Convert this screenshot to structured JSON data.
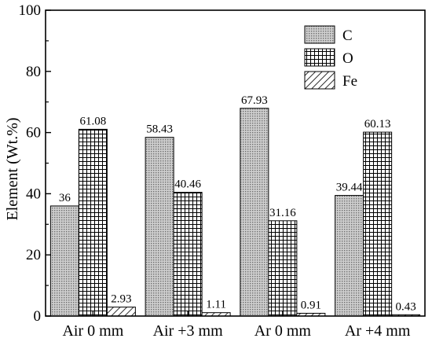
{
  "chart_data": {
    "type": "bar",
    "categories": [
      "Air 0 mm",
      "Air +3 mm",
      "Ar 0 mm",
      "Ar +4 mm"
    ],
    "series": [
      {
        "name": "C",
        "values": [
          36,
          58.43,
          67.93,
          39.44
        ],
        "pattern": "dots"
      },
      {
        "name": "O",
        "values": [
          61.08,
          40.46,
          31.16,
          60.13
        ],
        "pattern": "grid"
      },
      {
        "name": "Fe",
        "values": [
          2.93,
          1.11,
          0.91,
          0.43
        ],
        "pattern": "hatch"
      }
    ],
    "data_labels": [
      [
        "36",
        "58.43",
        "67.93",
        "39.44"
      ],
      [
        "61.08",
        "40.46",
        "31.16",
        "60.13"
      ],
      [
        "2.93",
        "1.11",
        "0.91",
        "0.43"
      ]
    ],
    "ylabel": "Element (Wt.%)",
    "xlabel": "",
    "ylim": [
      0,
      100
    ],
    "yticks": [
      0,
      20,
      40,
      60,
      80,
      100
    ],
    "legend_position": "top-right",
    "grid": false
  }
}
